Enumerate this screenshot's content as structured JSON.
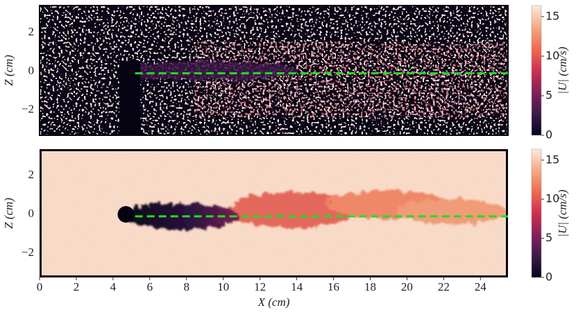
{
  "chart_data": [
    {
      "type": "heatmap",
      "ylabel": "Z (cm)",
      "xlim": [
        0,
        25.5
      ],
      "ylim": [
        -3.3,
        3.4
      ],
      "yticks": [
        {
          "value": -2,
          "label": "−2"
        },
        0,
        2
      ],
      "colorbar_label": "|U| (cm/s)",
      "clim": [
        0,
        16.4
      ],
      "cticks": [
        0,
        5,
        10,
        15
      ],
      "colormap": [
        "#03051a",
        "#3b1a4a",
        "#84205a",
        "#cf2f4f",
        "#ef6a4f",
        "#f5a982",
        "#faebdd"
      ],
      "reference_line": {
        "z": -0.1,
        "x": [
          5.2,
          25.5
        ],
        "color": "#22dd22"
      }
    },
    {
      "type": "heatmap",
      "xlabel": "X (cm)",
      "ylabel": "Z (cm)",
      "xlim": [
        0,
        25.5
      ],
      "ylim": [
        -3.25,
        3.36
      ],
      "xticks": [
        0,
        2,
        4,
        6,
        8,
        10,
        12,
        14,
        16,
        18,
        20,
        22,
        24
      ],
      "yticks": [
        {
          "value": -2,
          "label": "−2"
        },
        0,
        2
      ],
      "colorbar_label": "|U| (cm/s)",
      "clim": [
        0,
        16.4
      ],
      "cticks": [
        0,
        5,
        10,
        15
      ],
      "colormap": [
        "#03051a",
        "#3b1a4a",
        "#84205a",
        "#cf2f4f",
        "#ef6a4f",
        "#f5a982",
        "#faebdd"
      ],
      "cylinder": {
        "x": 4.7,
        "z": 0,
        "radius": 0.45,
        "color": "#050212"
      },
      "reference_line": {
        "z": -0.1,
        "x": [
          5.2,
          25.5
        ],
        "color": "#22dd22"
      }
    }
  ]
}
